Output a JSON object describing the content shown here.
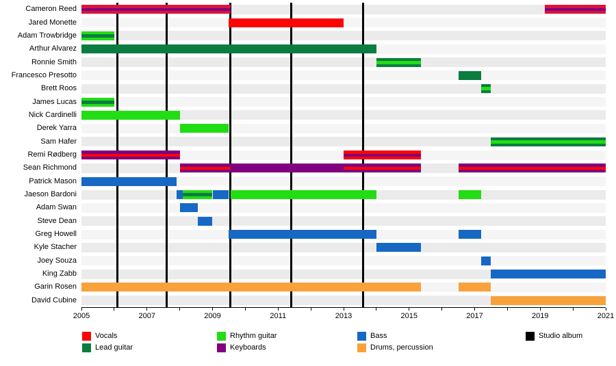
{
  "palette": {
    "red": "#fb0505",
    "crimson": "#dc143c",
    "darkgreen": "#0b7d40",
    "lime": "#22dc14",
    "purple": "#800080",
    "blue": "#1668c4",
    "orange": "#f9a13b",
    "black": "#000000"
  },
  "chart_data": {
    "type": "bar",
    "variant": "band-member-timeline",
    "title": "",
    "x_axis": {
      "min": 2005,
      "max": 2021,
      "labeled_ticks": [
        2005,
        2007,
        2009,
        2011,
        2013,
        2015,
        2017,
        2019,
        2021
      ],
      "tick_every_years": 1,
      "grid": false
    },
    "legend_position": "bottom",
    "legend": [
      {
        "label": "Vocals",
        "color": "red"
      },
      {
        "label": "Lead guitar",
        "color": "darkgreen"
      },
      {
        "label": "Rhythm guitar",
        "color": "lime"
      },
      {
        "label": "Keyboards",
        "color": "purple"
      },
      {
        "label": "Bass",
        "color": "blue"
      },
      {
        "label": "Drums, percussion",
        "color": "orange"
      },
      {
        "label": "Studio album",
        "color": "black"
      }
    ],
    "studio_album_years": [
      2006.1,
      2007.6,
      2009.55,
      2011.4,
      2013.6
    ],
    "members": [
      {
        "name": "Cameron Reed",
        "bars": [
          {
            "start": 2005,
            "end": 2009.55,
            "color": "crimson",
            "stripe": "purple"
          },
          {
            "start": 2019.15,
            "end": 2021,
            "color": "crimson",
            "stripe": "purple"
          }
        ]
      },
      {
        "name": "Jared Monette",
        "bars": [
          {
            "start": 2009.5,
            "end": 2013.0,
            "color": "red"
          }
        ]
      },
      {
        "name": "Adam Trowbridge",
        "bars": [
          {
            "start": 2005,
            "end": 2006.0,
            "color": "lime",
            "stripe": "darkgreen"
          }
        ]
      },
      {
        "name": "Arthur Alvarez",
        "bars": [
          {
            "start": 2005,
            "end": 2014.0,
            "color": "darkgreen"
          }
        ]
      },
      {
        "name": "Ronnie Smith",
        "bars": [
          {
            "start": 2014.0,
            "end": 2015.35,
            "color": "darkgreen",
            "stripe": "lime"
          }
        ]
      },
      {
        "name": "Francesco Presotto",
        "bars": [
          {
            "start": 2016.5,
            "end": 2017.2,
            "color": "darkgreen"
          }
        ]
      },
      {
        "name": "Brett Roos",
        "bars": [
          {
            "start": 2017.2,
            "end": 2017.5,
            "color": "darkgreen",
            "stripe": "lime"
          }
        ]
      },
      {
        "name": "James Lucas",
        "bars": [
          {
            "start": 2005,
            "end": 2006.0,
            "color": "lime",
            "stripe": "darkgreen"
          }
        ]
      },
      {
        "name": "Nick Cardinelli",
        "bars": [
          {
            "start": 2005,
            "end": 2008.0,
            "color": "lime"
          }
        ]
      },
      {
        "name": "Derek Yarra",
        "bars": [
          {
            "start": 2008.0,
            "end": 2009.5,
            "color": "lime"
          }
        ]
      },
      {
        "name": "Sam Hafer",
        "bars": [
          {
            "start": 2017.5,
            "end": 2021,
            "color": "darkgreen",
            "stripe": "lime"
          }
        ]
      },
      {
        "name": "Remi Rødberg",
        "bars": [
          {
            "start": 2005,
            "end": 2008.0,
            "color": "purple",
            "stripe": "red"
          },
          {
            "start": 2013.0,
            "end": 2015.35,
            "color": "red",
            "stripe": "purple"
          }
        ]
      },
      {
        "name": "Sean Richmond",
        "bars": [
          {
            "start": 2008.0,
            "end": 2009.55,
            "color": "purple",
            "stripe": "red"
          },
          {
            "start": 2009.55,
            "end": 2013.0,
            "color": "purple"
          },
          {
            "start": 2013.0,
            "end": 2015.35,
            "color": "purple",
            "stripe": "red"
          },
          {
            "start": 2016.5,
            "end": 2021,
            "color": "purple",
            "stripe": "red"
          }
        ]
      },
      {
        "name": "Patrick Mason",
        "bars": [
          {
            "start": 2005,
            "end": 2007.9,
            "color": "blue"
          }
        ]
      },
      {
        "name": "Jaeson Bardoni",
        "bars": [
          {
            "start": 2007.9,
            "end": 2008.1,
            "color": "blue"
          },
          {
            "start": 2008.1,
            "end": 2009.0,
            "color": "lime",
            "stripe": "darkgreen"
          },
          {
            "start": 2009.0,
            "end": 2009.5,
            "color": "blue"
          },
          {
            "start": 2009.55,
            "end": 2014.0,
            "color": "lime"
          },
          {
            "start": 2016.5,
            "end": 2017.2,
            "color": "lime"
          }
        ]
      },
      {
        "name": "Adam Swan",
        "bars": [
          {
            "start": 2008.0,
            "end": 2008.55,
            "color": "blue"
          }
        ]
      },
      {
        "name": "Steve Dean",
        "bars": [
          {
            "start": 2008.55,
            "end": 2009.0,
            "color": "blue"
          }
        ]
      },
      {
        "name": "Greg Howell",
        "bars": [
          {
            "start": 2009.5,
            "end": 2014.0,
            "color": "blue"
          },
          {
            "start": 2016.5,
            "end": 2017.2,
            "color": "blue"
          }
        ]
      },
      {
        "name": "Kyle Stacher",
        "bars": [
          {
            "start": 2014.0,
            "end": 2015.35,
            "color": "blue"
          }
        ]
      },
      {
        "name": "Joey Souza",
        "bars": [
          {
            "start": 2017.2,
            "end": 2017.5,
            "color": "blue"
          }
        ]
      },
      {
        "name": "King Zabb",
        "bars": [
          {
            "start": 2017.5,
            "end": 2021,
            "color": "blue"
          }
        ]
      },
      {
        "name": "Garin Rosen",
        "bars": [
          {
            "start": 2005,
            "end": 2015.35,
            "color": "orange"
          },
          {
            "start": 2016.5,
            "end": 2017.5,
            "color": "orange"
          }
        ]
      },
      {
        "name": "David Cubine",
        "bars": [
          {
            "start": 2017.5,
            "end": 2021,
            "color": "orange"
          }
        ]
      }
    ]
  }
}
